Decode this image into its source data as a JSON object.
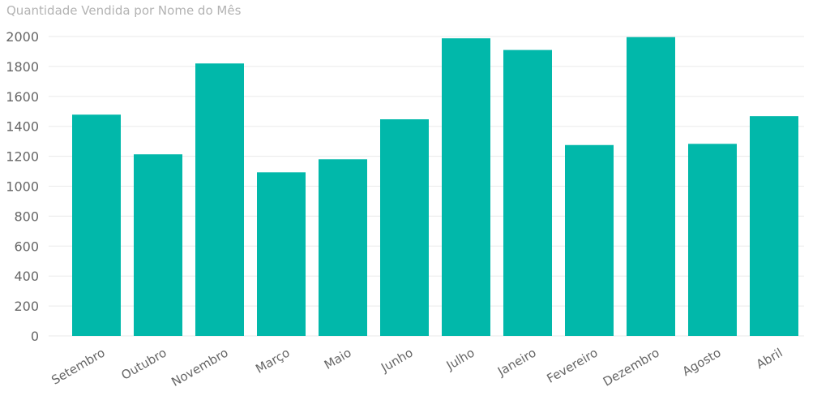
{
  "chart_data": {
    "type": "bar",
    "title": "Quantidade Vendida por Nome do Mês",
    "xlabel": "",
    "ylabel": "",
    "categories": [
      "Setembro",
      "Outubro",
      "Novembro",
      "Março",
      "Maio",
      "Junho",
      "Julho",
      "Janeiro",
      "Fevereiro",
      "Dezembro",
      "Agosto",
      "Abril"
    ],
    "values": [
      1478,
      1213,
      1820,
      1093,
      1180,
      1447,
      1988,
      1910,
      1275,
      1996,
      1283,
      1468
    ],
    "ylim": [
      0,
      2000
    ],
    "yticks": [
      0,
      200,
      400,
      600,
      800,
      1000,
      1200,
      1400,
      1600,
      1800,
      2000
    ],
    "grid": true,
    "legend": "none",
    "bar_color": "#01B8AA",
    "tick_label_color": "#666666",
    "title_color": "#B3B3B3"
  }
}
